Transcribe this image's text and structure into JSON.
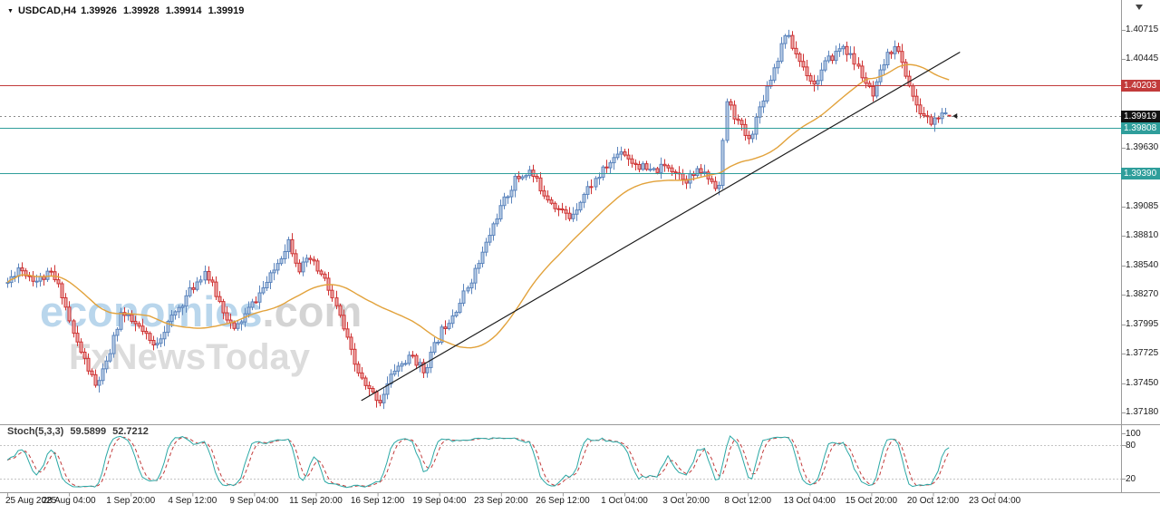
{
  "header": {
    "symbol": "USDCAD,H4",
    "ohlc": "1.39926 1.39928 1.39914 1.39919"
  },
  "watermark": {
    "brand": "economies",
    "domain": ".com",
    "subtitle": "FxNewsToday"
  },
  "indicator": {
    "name": "Stoch(5,3,3)",
    "value_k": "59.5899",
    "value_d": "52.7212"
  },
  "price_axis": {
    "ticks": [
      "1.40715",
      "1.40445",
      "1.39630",
      "1.39085",
      "1.38810",
      "1.38540",
      "1.38270",
      "1.37995",
      "1.37725",
      "1.37450",
      "1.37180"
    ],
    "badges": [
      {
        "label": "1.40203",
        "price": 1.40203,
        "bg": "#c23b3b",
        "role": "resistance"
      },
      {
        "label": "1.39919",
        "price": 1.39919,
        "bg": "#111111",
        "role": "current-price"
      },
      {
        "label": "1.39808",
        "price": 1.39808,
        "bg": "#2f9e9b",
        "role": "support-upper"
      },
      {
        "label": "1.39390",
        "price": 1.3939,
        "bg": "#2f9e9b",
        "role": "support-lower"
      }
    ]
  },
  "stoch_axis": {
    "labels": [
      {
        "text": "100",
        "value": 100
      },
      {
        "text": "80",
        "value": 80
      },
      {
        "text": "20",
        "value": 20
      }
    ]
  },
  "time_axis": {
    "labels": [
      "25 Aug 2025",
      "28 Aug 04:00",
      "1 Sep 20:00",
      "4 Sep 12:00",
      "9 Sep 04:00",
      "11 Sep 20:00",
      "16 Sep 12:00",
      "19 Sep 04:00",
      "23 Sep 20:00",
      "26 Sep 12:00",
      "1 Oct 04:00",
      "3 Oct 20:00",
      "8 Oct 12:00",
      "13 Oct 04:00",
      "15 Oct 20:00",
      "20 Oct 12:00",
      "23 Oct 04:00"
    ]
  },
  "chart_data": {
    "type": "candlestick",
    "symbol": "USDCAD",
    "timeframe": "H4",
    "candle_count": 259,
    "seed": 11,
    "noise": {
      "close": 0.00085,
      "wick": 0.00055
    },
    "visible_price_range": [
      1.3718,
      1.4076
    ],
    "last_candle": {
      "o": 1.39926,
      "h": 1.39928,
      "l": 1.39914,
      "c": 1.39919
    },
    "price_path_anchors": [
      [
        0,
        1.3838
      ],
      [
        3,
        1.3852
      ],
      [
        8,
        1.384
      ],
      [
        12,
        1.3846
      ],
      [
        15,
        1.3828
      ],
      [
        18,
        1.379
      ],
      [
        24,
        1.3742
      ],
      [
        27,
        1.3762
      ],
      [
        31,
        1.381
      ],
      [
        36,
        1.3796
      ],
      [
        40,
        1.3779
      ],
      [
        44,
        1.38
      ],
      [
        48,
        1.382
      ],
      [
        54,
        1.3849
      ],
      [
        58,
        1.382
      ],
      [
        62,
        1.3793
      ],
      [
        67,
        1.3818
      ],
      [
        72,
        1.3843
      ],
      [
        77,
        1.3877
      ],
      [
        80,
        1.3851
      ],
      [
        83,
        1.3859
      ],
      [
        87,
        1.384
      ],
      [
        91,
        1.3806
      ],
      [
        95,
        1.3762
      ],
      [
        98,
        1.3741
      ],
      [
        102,
        1.3729
      ],
      [
        106,
        1.3758
      ],
      [
        111,
        1.377
      ],
      [
        114,
        1.3756
      ],
      [
        119,
        1.3794
      ],
      [
        124,
        1.382
      ],
      [
        129,
        1.3856
      ],
      [
        134,
        1.39
      ],
      [
        139,
        1.3933
      ],
      [
        143,
        1.3941
      ],
      [
        147,
        1.3921
      ],
      [
        151,
        1.3906
      ],
      [
        154,
        1.3898
      ],
      [
        159,
        1.3925
      ],
      [
        164,
        1.3945
      ],
      [
        168,
        1.3961
      ],
      [
        171,
        1.395
      ],
      [
        176,
        1.394
      ],
      [
        181,
        1.3946
      ],
      [
        186,
        1.3934
      ],
      [
        190,
        1.3941
      ],
      [
        194,
        1.3929
      ],
      [
        195,
        1.3927
      ],
      [
        197,
        1.4006
      ],
      [
        200,
        1.3986
      ],
      [
        203,
        1.3969
      ],
      [
        207,
        1.401
      ],
      [
        211,
        1.4046
      ],
      [
        213,
        1.4069
      ],
      [
        217,
        1.4043
      ],
      [
        221,
        1.4021
      ],
      [
        224,
        1.404
      ],
      [
        229,
        1.4057
      ],
      [
        233,
        1.4036
      ],
      [
        237,
        1.4009
      ],
      [
        240,
        1.4041
      ],
      [
        243,
        1.4059
      ],
      [
        247,
        1.4021
      ],
      [
        249,
        1.3999
      ],
      [
        253,
        1.3986
      ],
      [
        255,
        1.3991
      ],
      [
        258,
        1.39919
      ]
    ],
    "overlays": {
      "moving_average": {
        "type": "SMA",
        "period": 40,
        "color": "#e2a23b"
      },
      "trendline": {
        "from_index": 97,
        "from_price": 1.3729,
        "to_index": 261,
        "to_price": 1.4051,
        "color": "#1a1a1a"
      },
      "horizontal_lines": [
        {
          "price": 1.40203,
          "color": "#c23b3b",
          "style": "solid"
        },
        {
          "price": 1.39919,
          "color": "#8a8a8a",
          "style": "dotted"
        },
        {
          "price": 1.39808,
          "color": "#2f9e9b",
          "style": "solid"
        },
        {
          "price": 1.3939,
          "color": "#2f9e9b",
          "style": "solid"
        }
      ]
    },
    "stochastic": {
      "k_period": 5,
      "slowing": 3,
      "d_period": 3,
      "current_k": 59.5899,
      "current_d": 52.7212,
      "levels": [
        80,
        20
      ],
      "main_color": "#2aa8a5",
      "signal_color": "#c23b3b"
    }
  },
  "colors": {
    "up": "#5c85bd",
    "up_fill": "#b7cbe4",
    "down": "#cf3434",
    "down_fill": "#eda9a9",
    "axis_line": "#9a9a9a",
    "text": "#1a1a1a",
    "background": "#ffffff"
  }
}
